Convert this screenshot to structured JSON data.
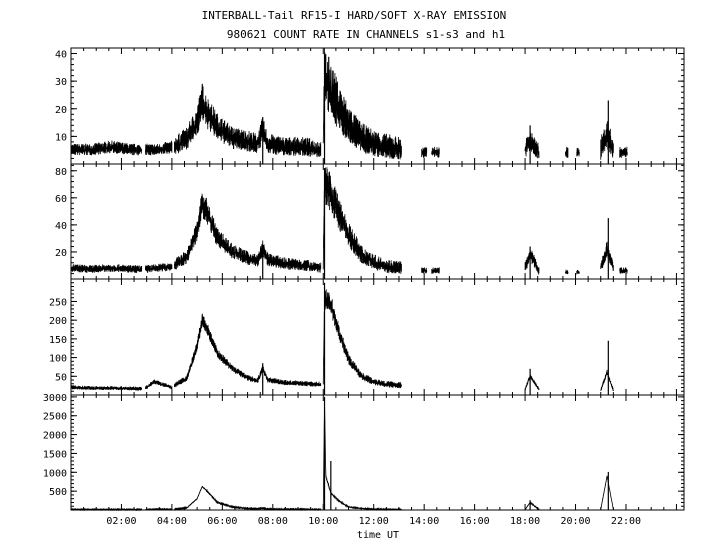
{
  "header": {
    "line1": "INTERBALL-Tail RF15-I HARD/SOFT X-RAY EMISSION",
    "line2": "980621  COUNT RATE IN CHANNELS s1-s3 and h1"
  },
  "chart_data": [
    {
      "type": "line",
      "panel": "s1",
      "xlabel": "time UT",
      "xlim": [
        0,
        24.3
      ],
      "ylim": [
        0,
        42
      ],
      "yticks": [
        10,
        20,
        30,
        40
      ],
      "xticks": [
        "02:00",
        "04:00",
        "06:00",
        "08:00",
        "10:00",
        "12:00",
        "14:00",
        "16:00",
        "18:00",
        "20:00",
        "22:00"
      ],
      "segments": [
        {
          "x": [
            0.0,
            0.8,
            1.6,
            2.4,
            2.8
          ],
          "y": [
            5,
            5,
            6,
            5,
            5
          ],
          "noise": 4
        },
        {
          "x": [
            2.95,
            3.5,
            4.0
          ],
          "y": [
            5,
            5,
            6
          ],
          "noise": 4
        },
        {
          "x": [
            4.1,
            4.6,
            5.0,
            5.2,
            5.4,
            5.8,
            6.4,
            7.0,
            7.4,
            7.6,
            7.8,
            8.5,
            9.2,
            9.9
          ],
          "y": [
            6,
            9,
            15,
            22,
            18,
            13,
            9,
            8,
            7,
            12,
            7,
            6,
            6,
            5
          ],
          "noise": 6
        },
        {
          "x": [
            10.0,
            10.05,
            10.3,
            10.6,
            11.0,
            11.5,
            12.0,
            12.5,
            13.1
          ],
          "y": [
            8,
            30,
            26,
            20,
            14,
            9,
            7,
            6,
            5
          ],
          "noise": 8
        },
        {
          "x": [
            13.9,
            14.1
          ],
          "y": [
            4,
            4
          ],
          "noise": 4
        },
        {
          "x": [
            14.3,
            14.6
          ],
          "y": [
            4,
            4
          ],
          "noise": 4
        },
        {
          "x": [
            18.0,
            18.2,
            18.55
          ],
          "y": [
            5,
            8,
            4
          ],
          "noise": 6
        },
        {
          "x": [
            19.6,
            19.7
          ],
          "y": [
            4,
            4
          ],
          "noise": 4
        },
        {
          "x": [
            20.05,
            20.15
          ],
          "y": [
            4,
            4
          ],
          "noise": 4
        },
        {
          "x": [
            21.0,
            21.25,
            21.5
          ],
          "y": [
            5,
            10,
            5
          ],
          "noise": 8
        },
        {
          "x": [
            21.75,
            22.05
          ],
          "y": [
            4,
            4
          ],
          "noise": 4
        }
      ],
      "spikes": [
        [
          10.05,
          40
        ],
        [
          18.2,
          14
        ],
        [
          21.3,
          23
        ],
        [
          7.6,
          17
        ]
      ]
    },
    {
      "type": "line",
      "panel": "s2",
      "xlim": [
        0,
        24.3
      ],
      "ylim": [
        0,
        85
      ],
      "yticks": [
        20,
        40,
        60,
        80
      ],
      "segments": [
        {
          "x": [
            0.0,
            0.8,
            1.6,
            2.4,
            2.8
          ],
          "y": [
            8,
            7,
            8,
            7,
            7
          ],
          "noise": 6
        },
        {
          "x": [
            2.95,
            3.5,
            4.0
          ],
          "y": [
            7,
            8,
            9
          ],
          "noise": 6
        },
        {
          "x": [
            4.1,
            4.6,
            5.0,
            5.2,
            5.4,
            5.8,
            6.4,
            7.0,
            7.4,
            7.6,
            7.8,
            8.5,
            9.2,
            9.9
          ],
          "y": [
            10,
            16,
            35,
            55,
            48,
            30,
            20,
            15,
            13,
            22,
            14,
            11,
            10,
            8
          ],
          "noise": 8
        },
        {
          "x": [
            10.0,
            10.05,
            10.3,
            10.6,
            11.0,
            11.5,
            12.0,
            12.5,
            13.1
          ],
          "y": [
            12,
            68,
            62,
            48,
            32,
            18,
            12,
            9,
            8
          ],
          "noise": 10
        },
        {
          "x": [
            13.9,
            14.1
          ],
          "y": [
            6,
            6
          ],
          "noise": 5
        },
        {
          "x": [
            14.3,
            14.6
          ],
          "y": [
            6,
            6
          ],
          "noise": 5
        },
        {
          "x": [
            18.0,
            18.2,
            18.55
          ],
          "y": [
            8,
            18,
            6
          ],
          "noise": 8
        },
        {
          "x": [
            19.6,
            19.7
          ],
          "y": [
            5,
            5
          ],
          "noise": 4
        },
        {
          "x": [
            20.05,
            20.15
          ],
          "y": [
            5,
            5
          ],
          "noise": 4
        },
        {
          "x": [
            21.0,
            21.25,
            21.5
          ],
          "y": [
            8,
            22,
            8
          ],
          "noise": 8
        },
        {
          "x": [
            21.75,
            22.05
          ],
          "y": [
            6,
            6
          ],
          "noise": 5
        }
      ],
      "spikes": [
        [
          10.05,
          82
        ],
        [
          18.2,
          24
        ],
        [
          21.3,
          45
        ],
        [
          7.6,
          25
        ]
      ]
    },
    {
      "type": "line",
      "panel": "s3",
      "xlim": [
        0,
        24.3
      ],
      "ylim": [
        0,
        310
      ],
      "yticks": [
        50,
        100,
        150,
        200,
        250
      ],
      "segments": [
        {
          "x": [
            0.0,
            0.8,
            1.6,
            2.4,
            2.8
          ],
          "y": [
            20,
            18,
            18,
            17,
            16
          ],
          "noise": 12
        },
        {
          "x": [
            2.95,
            3.3,
            3.6,
            4.0
          ],
          "y": [
            18,
            35,
            28,
            20
          ],
          "noise": 12
        },
        {
          "x": [
            4.1,
            4.6,
            5.0,
            5.2,
            5.4,
            5.8,
            6.4,
            7.0,
            7.4,
            7.6,
            7.8,
            8.5,
            9.2,
            9.9
          ],
          "y": [
            25,
            45,
            130,
            200,
            175,
            110,
            70,
            45,
            38,
            70,
            40,
            32,
            30,
            28
          ],
          "noise": 14
        },
        {
          "x": [
            10.0,
            10.05,
            10.3,
            10.6,
            11.0,
            11.5,
            12.0,
            12.5,
            13.1
          ],
          "y": [
            30,
            255,
            240,
            170,
            95,
            50,
            35,
            28,
            25
          ],
          "noise": 18
        },
        {
          "x": [
            18.0,
            18.2,
            18.55
          ],
          "y": [
            15,
            50,
            15
          ],
          "noise": 10
        },
        {
          "x": [
            21.0,
            21.25,
            21.5
          ],
          "y": [
            12,
            60,
            12
          ],
          "noise": 10
        }
      ],
      "spikes": [
        [
          10.05,
          300
        ],
        [
          18.2,
          70
        ],
        [
          21.3,
          145
        ],
        [
          7.6,
          85
        ]
      ]
    },
    {
      "type": "line",
      "panel": "h1",
      "xlim": [
        0,
        24.3
      ],
      "ylim": [
        0,
        3050
      ],
      "yticks": [
        500,
        1000,
        1500,
        2000,
        2500,
        3000
      ],
      "segments": [
        {
          "x": [
            0.0,
            1.0,
            2.0,
            2.8
          ],
          "y": [
            15,
            12,
            12,
            10
          ],
          "noise": 25
        },
        {
          "x": [
            2.95,
            3.5,
            4.0
          ],
          "y": [
            12,
            25,
            15
          ],
          "noise": 20
        },
        {
          "x": [
            4.1,
            4.6,
            5.0,
            5.2,
            5.4,
            5.8,
            6.4,
            7.0,
            7.4,
            7.6,
            7.8,
            8.5,
            9.2,
            9.9
          ],
          "y": [
            20,
            60,
            300,
            620,
            500,
            200,
            80,
            40,
            30,
            50,
            25,
            20,
            18,
            15
          ],
          "noise": 30
        },
        {
          "x": [
            10.0,
            10.05,
            10.1,
            10.3,
            10.6,
            11.0,
            11.5,
            12.0,
            12.5,
            13.1
          ],
          "y": [
            20,
            2900,
            900,
            450,
            250,
            80,
            40,
            25,
            20,
            15
          ],
          "noise": 40
        },
        {
          "x": [
            18.0,
            18.2,
            18.55
          ],
          "y": [
            10,
            200,
            10
          ],
          "noise": 25
        },
        {
          "x": [
            21.0,
            21.25,
            21.5
          ],
          "y": [
            10,
            900,
            10
          ],
          "noise": 30
        }
      ],
      "spikes": [
        [
          10.05,
          3000
        ],
        [
          18.2,
          260
        ],
        [
          21.3,
          1010
        ],
        [
          10.3,
          1300
        ]
      ]
    }
  ]
}
